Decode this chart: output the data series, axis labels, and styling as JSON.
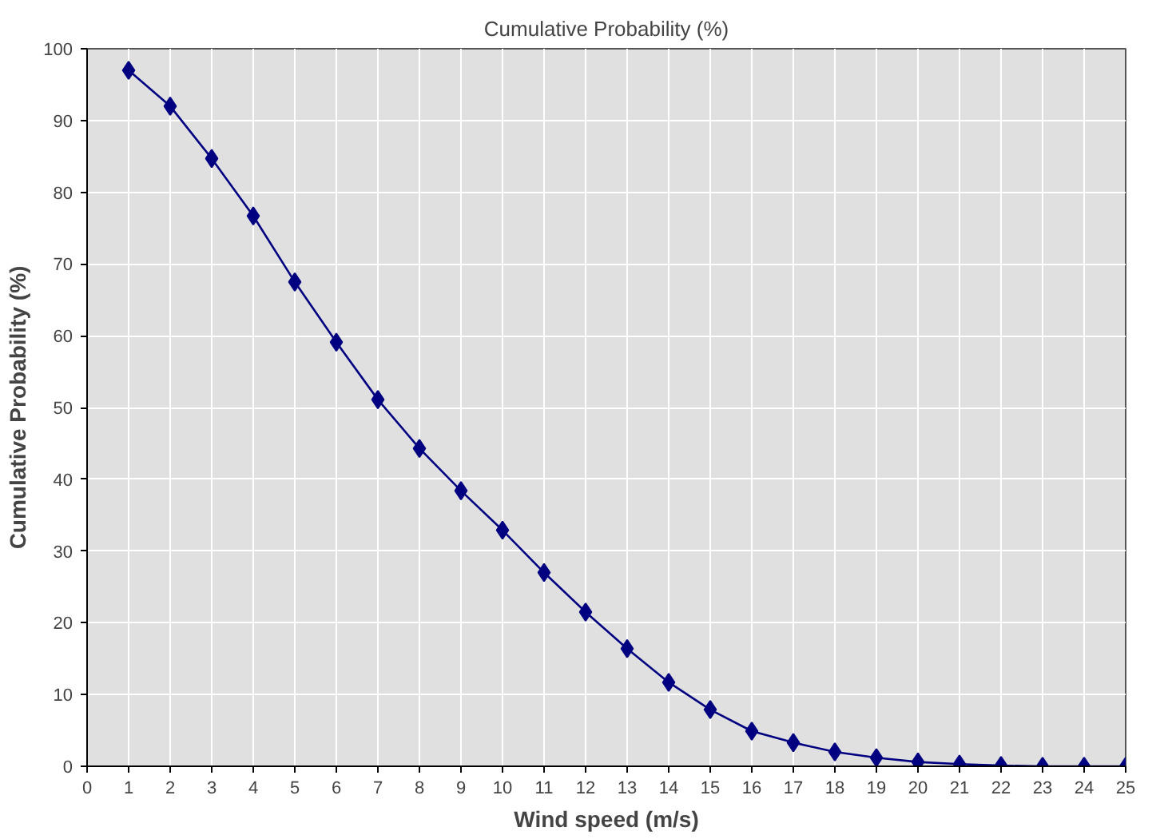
{
  "chart_data": {
    "type": "line",
    "title": "Cumulative Probability (%)",
    "xlabel": "Wind speed (m/s)",
    "ylabel": "Cumulative Probability (%)",
    "x": [
      1,
      2,
      3,
      4,
      5,
      6,
      7,
      8,
      9,
      10,
      11,
      12,
      13,
      14,
      15,
      16,
      17,
      18,
      19,
      20,
      21,
      22,
      23,
      24,
      25
    ],
    "series": [
      {
        "color": "#000080",
        "values": [
          97,
          92,
          84.7,
          76.7,
          67.5,
          59.1,
          51.1,
          44.3,
          38.4,
          32.9,
          27,
          21.5,
          16.4,
          11.7,
          7.9,
          4.9,
          3.3,
          2,
          1.2,
          0.6,
          0.3,
          0.1,
          0,
          0,
          0
        ]
      }
    ],
    "xlim": [
      0,
      25
    ],
    "xticks": [
      0,
      1,
      2,
      3,
      4,
      5,
      6,
      7,
      8,
      9,
      10,
      11,
      12,
      13,
      14,
      15,
      16,
      17,
      18,
      19,
      20,
      21,
      22,
      23,
      24,
      25
    ],
    "ylim": [
      0,
      100
    ],
    "yticks": [
      0,
      10,
      20,
      30,
      40,
      50,
      60,
      70,
      80,
      90,
      100
    ],
    "grid": true,
    "marker": "diamond",
    "line_style": "solid"
  }
}
